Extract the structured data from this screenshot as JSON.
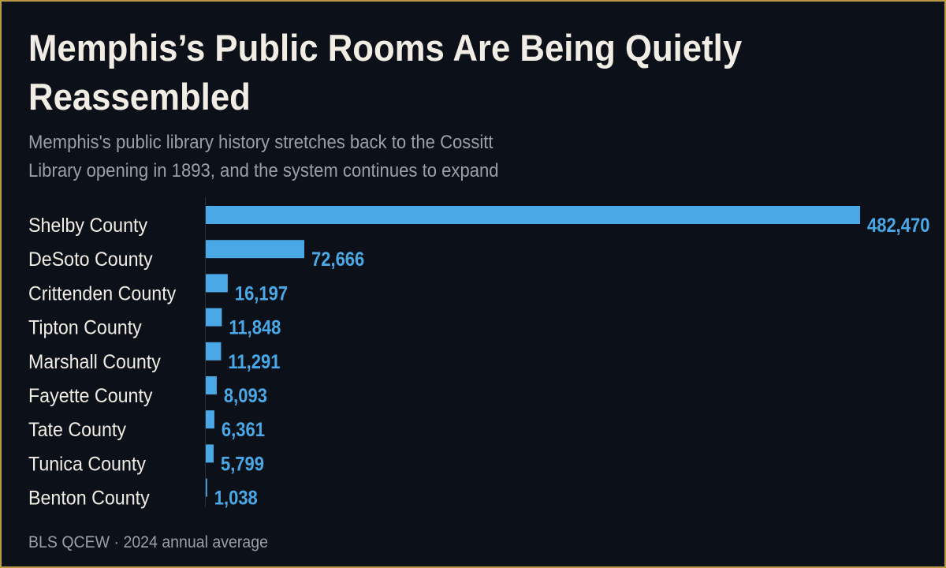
{
  "title": "Memphis’s Public Rooms Are Being Quietly Reassembled",
  "subtitle": "Memphis's public library history stretches back to the Cossitt Library opening in 1893, and the system continues to expand",
  "source": "BLS QCEW · 2024 annual average",
  "colors": {
    "bar": "#4aa8e6",
    "value_label": "#4aa8e6",
    "text": "#f1ece4",
    "muted": "#9aa0a8",
    "background": "#0c1018",
    "border": "#b89a4a"
  },
  "chart_data": {
    "type": "bar",
    "orientation": "horizontal",
    "title": "Memphis’s Public Rooms Are Being Quietly Reassembled",
    "subtitle": "Memphis's public library history stretches back to the Cossitt Library opening in 1893, and the system continues to expand",
    "categories": [
      "Shelby County",
      "DeSoto County",
      "Crittenden County",
      "Tipton County",
      "Marshall County",
      "Fayette County",
      "Tate County",
      "Tunica County",
      "Benton County"
    ],
    "values": [
      482470,
      72666,
      16197,
      11848,
      11291,
      8093,
      6361,
      5799,
      1038
    ],
    "value_labels": [
      "482,470",
      "72,666",
      "16,197",
      "11,848",
      "11,291",
      "8,093",
      "6,361",
      "5,799",
      "1,038"
    ],
    "xlim": [
      0,
      482470
    ],
    "grid": false,
    "legend": "none"
  }
}
